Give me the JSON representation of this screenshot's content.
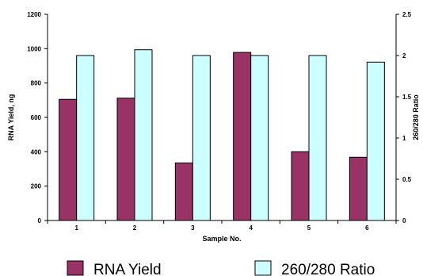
{
  "chart_data": {
    "type": "bar",
    "xlabel": "Sample No.",
    "categories": [
      "1",
      "2",
      "3",
      "4",
      "5",
      "6"
    ],
    "ylabel_left": "RNA Yield, ng",
    "ylabel_right": "260/280 Ratio",
    "y_left": {
      "min": 0,
      "max": 1200,
      "ticks": [
        "0",
        "200",
        "400",
        "600",
        "800",
        "1000",
        "1200"
      ]
    },
    "y_right": {
      "min": 0,
      "max": 2.5,
      "ticks": [
        "0",
        "0.5",
        "1",
        "1.5",
        "2",
        "2.5"
      ]
    },
    "grid": false,
    "legend_position": "bottom",
    "series": [
      {
        "name": "RNA Yield",
        "axis": "left",
        "color": "#993366",
        "values": [
          705,
          712,
          335,
          978,
          400,
          368
        ]
      },
      {
        "name": "260/280 Ratio",
        "axis": "right",
        "color": "#ccffff",
        "values": [
          2.0,
          2.07,
          2.0,
          2.0,
          2.0,
          1.92
        ]
      }
    ]
  }
}
